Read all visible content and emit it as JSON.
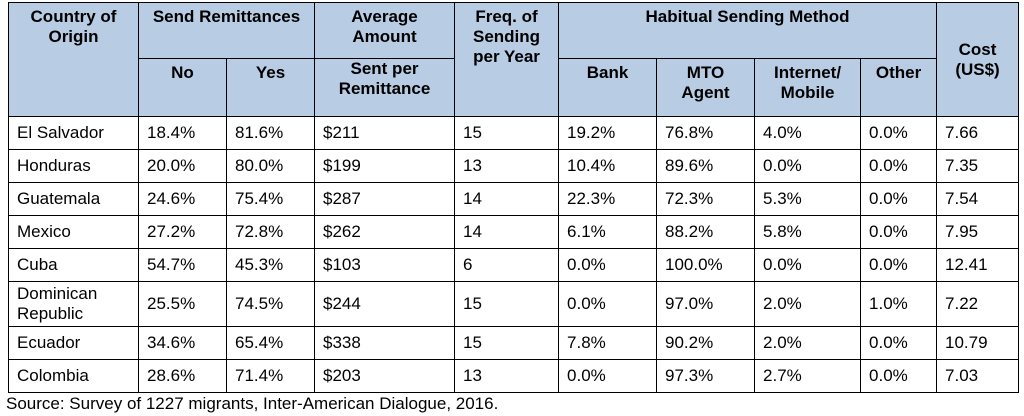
{
  "table": {
    "headers": {
      "country": "Country of Origin",
      "send_group": "Send Remittances",
      "no": "No",
      "yes": "Yes",
      "avg_top": "Average Amount",
      "avg_bottom": "Sent per Remittance",
      "freq": "Freq. of Sending per Year",
      "method_group": "Habitual Sending Method",
      "bank": "Bank",
      "mto": "MTO Agent",
      "internet": "Internet/ Mobile",
      "other": "Other",
      "cost": "Cost (US$)"
    },
    "rows": [
      {
        "country": "El Salvador",
        "no": "18.4%",
        "yes": "81.6%",
        "avg": "$211",
        "freq": "15",
        "bank": "19.2%",
        "mto": "76.8%",
        "internet": "4.0%",
        "other": "0.0%",
        "cost": "7.66"
      },
      {
        "country": "Honduras",
        "no": "20.0%",
        "yes": "80.0%",
        "avg": "$199",
        "freq": "13",
        "bank": "10.4%",
        "mto": "89.6%",
        "internet": "0.0%",
        "other": "0.0%",
        "cost": "7.35"
      },
      {
        "country": "Guatemala",
        "no": "24.6%",
        "yes": "75.4%",
        "avg": "$287",
        "freq": "14",
        "bank": "22.3%",
        "mto": "72.3%",
        "internet": "5.3%",
        "other": "0.0%",
        "cost": "7.54"
      },
      {
        "country": "Mexico",
        "no": "27.2%",
        "yes": "72.8%",
        "avg": "$262",
        "freq": "14",
        "bank": "6.1%",
        "mto": "88.2%",
        "internet": "5.8%",
        "other": "0.0%",
        "cost": "7.95"
      },
      {
        "country": "Cuba",
        "no": "54.7%",
        "yes": "45.3%",
        "avg": "$103",
        "freq": "6",
        "bank": "0.0%",
        "mto": "100.0%",
        "internet": "0.0%",
        "other": "0.0%",
        "cost": "12.41"
      },
      {
        "country": "Dominican Republic",
        "no": "25.5%",
        "yes": "74.5%",
        "avg": "$244",
        "freq": "15",
        "bank": "0.0%",
        "mto": "97.0%",
        "internet": "2.0%",
        "other": "1.0%",
        "cost": "7.22"
      },
      {
        "country": "Ecuador",
        "no": "34.6%",
        "yes": "65.4%",
        "avg": "$338",
        "freq": "15",
        "bank": "7.8%",
        "mto": "90.2%",
        "internet": "2.0%",
        "other": "0.0%",
        "cost": "10.79"
      },
      {
        "country": "Colombia",
        "no": "28.6%",
        "yes": "71.4%",
        "avg": "$203",
        "freq": "13",
        "bank": "0.0%",
        "mto": "97.3%",
        "internet": "2.7%",
        "other": "0.0%",
        "cost": "7.03"
      }
    ]
  },
  "source": "Source: Survey of 1227 migrants, Inter-American Dialogue, 2016.",
  "colors": {
    "header_bg": "#b8cce4",
    "border": "#000000"
  }
}
